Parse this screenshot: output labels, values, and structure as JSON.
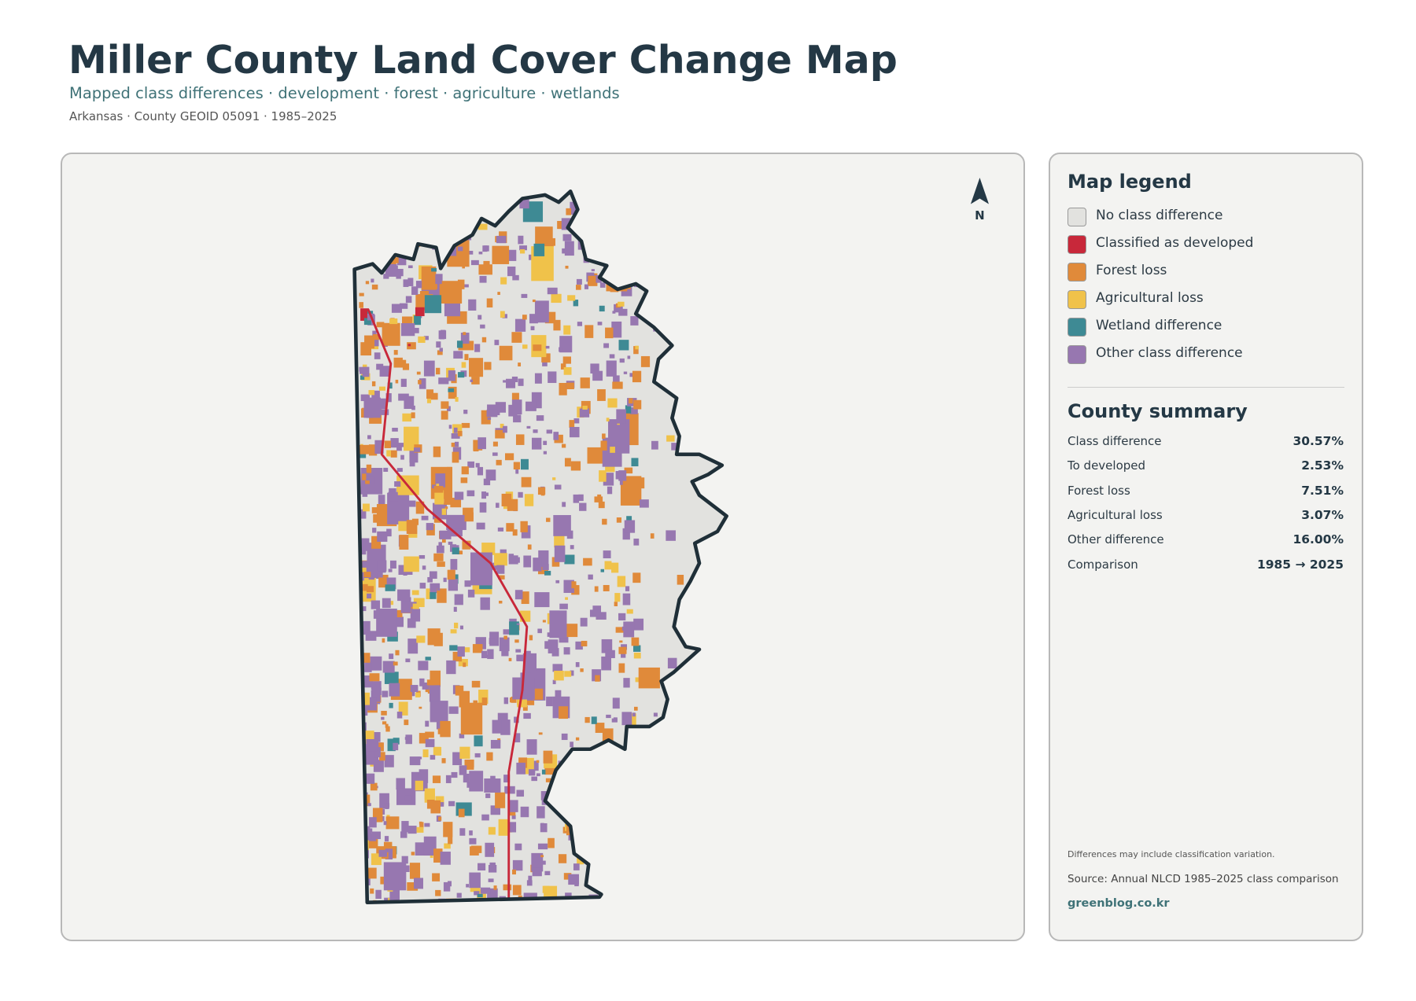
{
  "header": {
    "title": "Miller County Land Cover Change Map",
    "subtitle": "Mapped class differences · development · forest · agriculture · wetlands",
    "meta": "Arkansas · County GEOID 05091 · 1985–2025"
  },
  "map": {
    "north_label": "N"
  },
  "legend": {
    "title": "Map legend",
    "items": [
      {
        "label": "No class difference",
        "color": "#e2e2df"
      },
      {
        "label": "Classified as developed",
        "color": "#c8283a"
      },
      {
        "label": "Forest loss",
        "color": "#e08a3a"
      },
      {
        "label": "Agricultural loss",
        "color": "#f0c24a"
      },
      {
        "label": "Wetland difference",
        "color": "#3e8a94"
      },
      {
        "label": "Other class difference",
        "color": "#9777b0"
      }
    ]
  },
  "summary": {
    "title": "County summary",
    "rows": [
      {
        "label": "Class difference",
        "value": "30.57%"
      },
      {
        "label": "To developed",
        "value": "2.53%"
      },
      {
        "label": "Forest loss",
        "value": "7.51%"
      },
      {
        "label": "Agricultural loss",
        "value": "3.07%"
      },
      {
        "label": "Other difference",
        "value": "16.00%"
      },
      {
        "label": "Comparison",
        "value": "1985 → 2025"
      }
    ]
  },
  "notes": {
    "caveat": "Differences may include classification variation.",
    "source": "Source: Annual NLCD 1985–2025 class comparison",
    "credit": "greenblog.co.kr"
  }
}
